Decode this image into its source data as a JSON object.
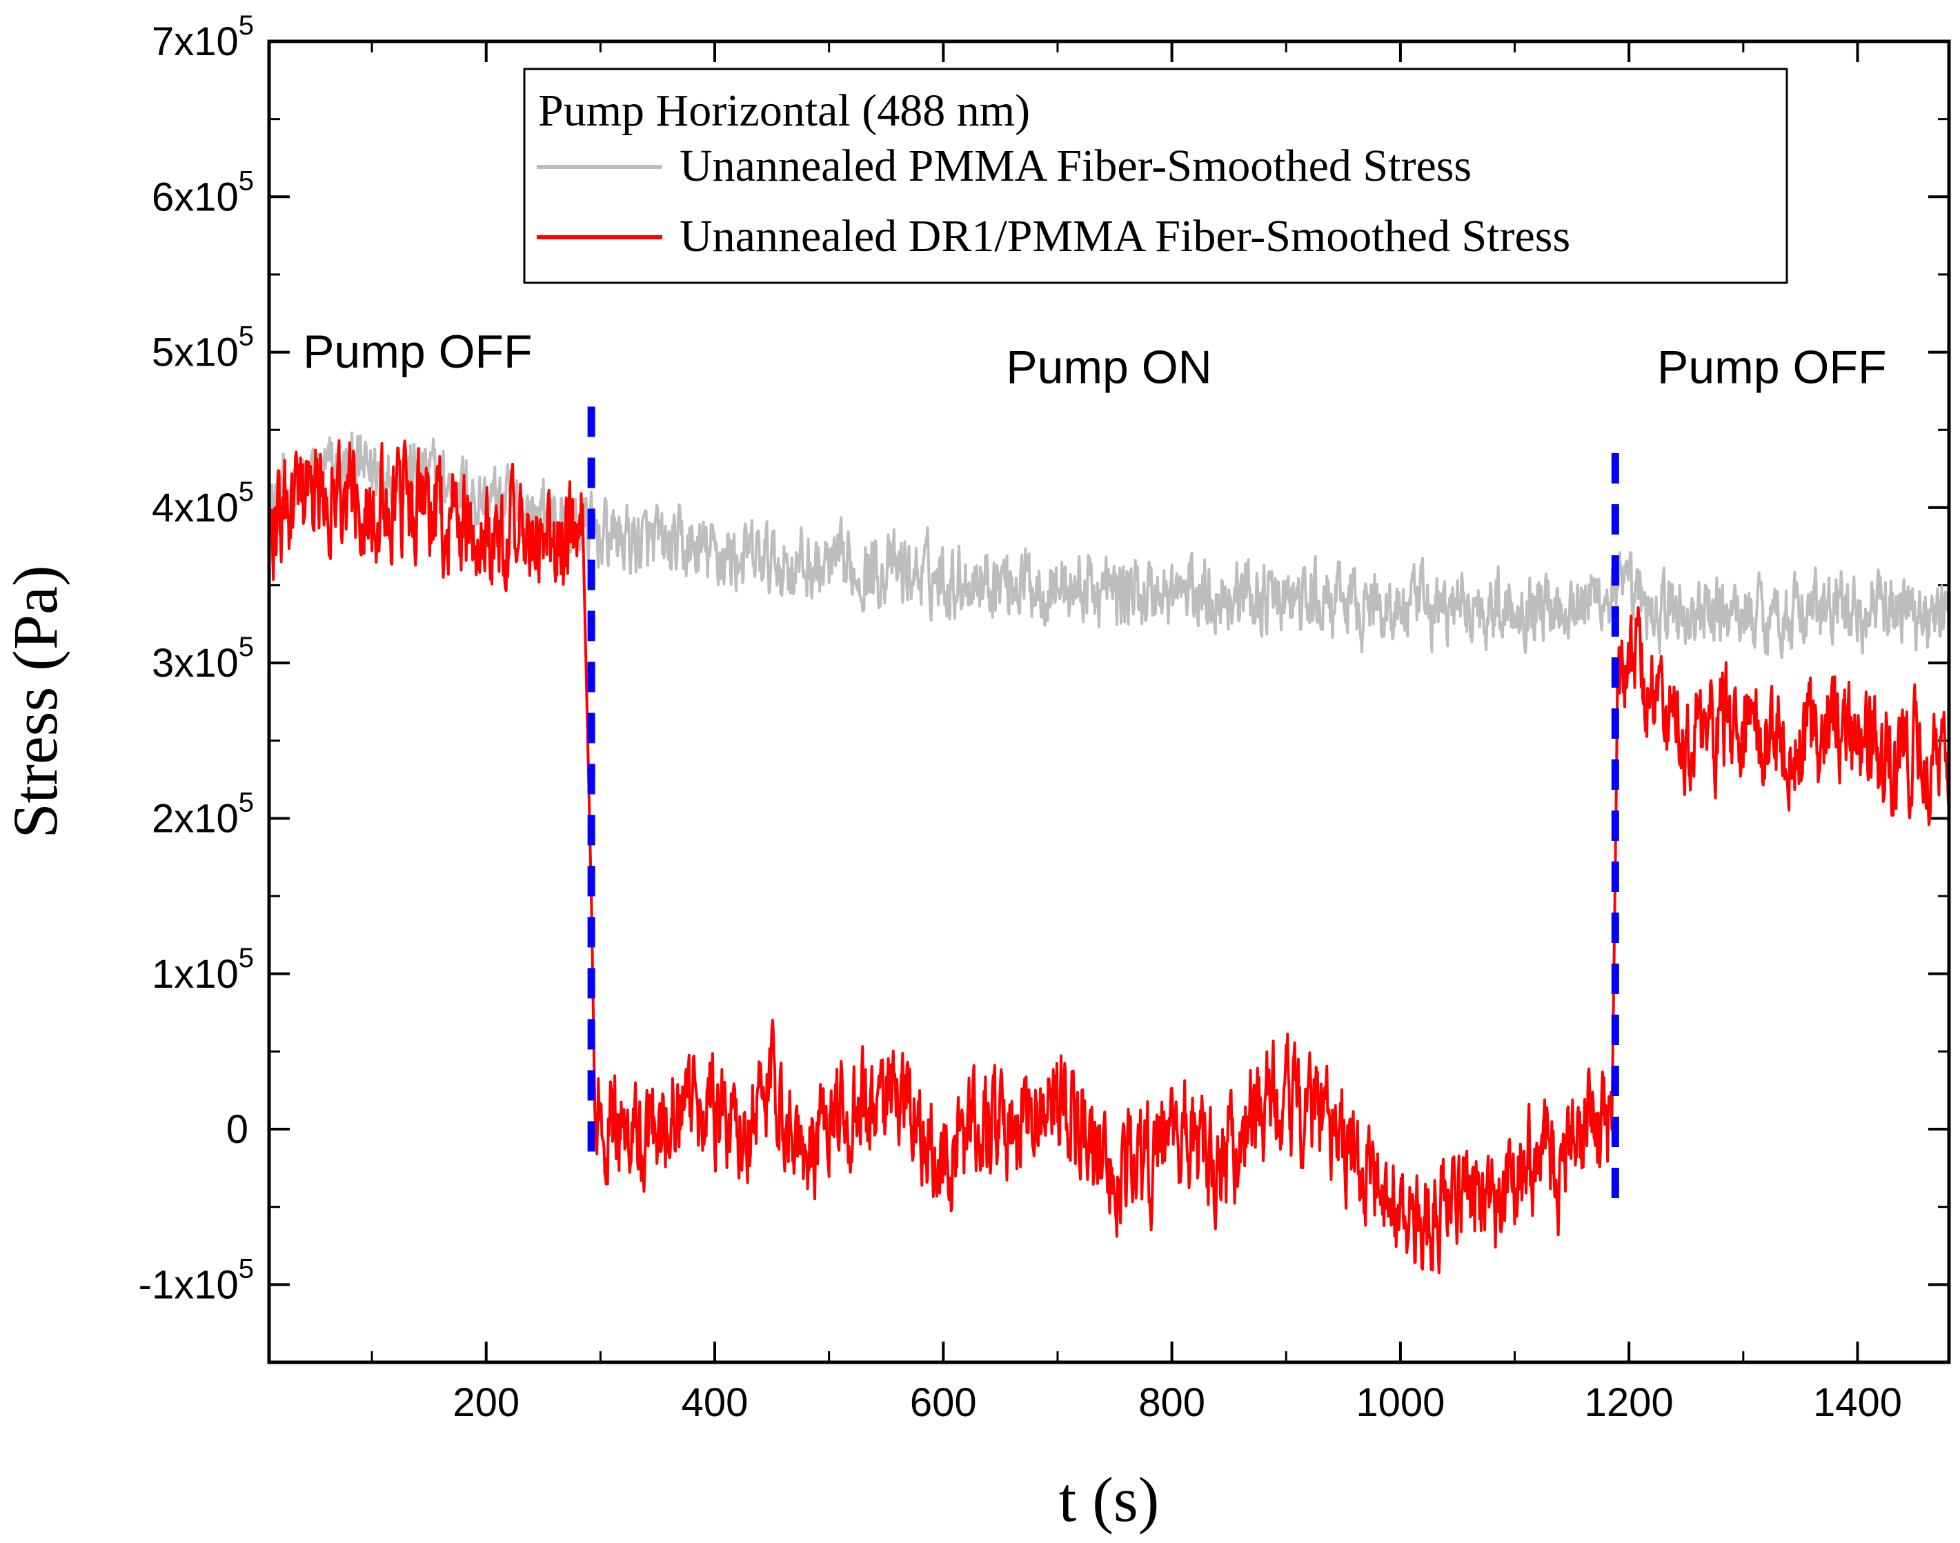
{
  "chart_data": {
    "type": "line",
    "title": "",
    "xlabel": "t (s)",
    "ylabel": "Stress (Pa)",
    "xlim": [
      10,
      1480
    ],
    "ylim": [
      -150000,
      700000
    ],
    "x_ticks": [
      200,
      400,
      600,
      800,
      1000,
      1200,
      1400
    ],
    "x_tick_labels": [
      "200",
      "400",
      "600",
      "800",
      "1000",
      "1200",
      "1400"
    ],
    "y_ticks": [
      {
        "value": -100000,
        "label": "-1x10",
        "exp": "5"
      },
      {
        "value": 0,
        "label": "0",
        "exp": ""
      },
      {
        "value": 100000,
        "label": "1x10",
        "exp": "5"
      },
      {
        "value": 200000,
        "label": "2x10",
        "exp": "5"
      },
      {
        "value": 300000,
        "label": "3x10",
        "exp": "5"
      },
      {
        "value": 400000,
        "label": "4x10",
        "exp": "5"
      },
      {
        "value": 500000,
        "label": "5x10",
        "exp": "5"
      },
      {
        "value": 600000,
        "label": "6x10",
        "exp": "5"
      },
      {
        "value": 700000,
        "label": "7x10",
        "exp": "5"
      }
    ],
    "legend": {
      "title": "Pump Horizontal (488 nm)",
      "placement": "top-center",
      "entries": [
        {
          "name": "Unannealed PMMA Fiber-Smoothed Stress",
          "color": "#bdbdbd"
        },
        {
          "name": "Unannealed DR1/PMMA Fiber-Smoothed Stress",
          "color": "#ff0000"
        }
      ]
    },
    "series": [
      {
        "name": "Unannealed PMMA Fiber-Smoothed Stress",
        "color": "#bdbdbd",
        "x": [
          10,
          50,
          100,
          150,
          200,
          250,
          290,
          350,
          400,
          450,
          500,
          550,
          600,
          650,
          700,
          750,
          800,
          850,
          900,
          950,
          1000,
          1050,
          1100,
          1150,
          1190,
          1220,
          1260,
          1300,
          1350,
          1400,
          1450,
          1480
        ],
        "y": [
          400000,
          420000,
          425000,
          420000,
          405000,
          395000,
          385000,
          375000,
          370000,
          365000,
          360000,
          360000,
          355000,
          355000,
          350000,
          345000,
          345000,
          345000,
          340000,
          338000,
          335000,
          335000,
          338000,
          340000,
          345000,
          335000,
          330000,
          332000,
          333000,
          334000,
          335000,
          330000
        ],
        "noise_amplitude": 20000
      },
      {
        "name": "Unannealed DR1/PMMA Fiber-Smoothed Stress",
        "color": "#ff0000",
        "x": [
          10,
          30,
          60,
          100,
          150,
          200,
          250,
          285,
          292,
          295,
          300,
          330,
          360,
          390,
          420,
          450,
          480,
          510,
          540,
          570,
          600,
          630,
          660,
          690,
          720,
          750,
          780,
          810,
          840,
          870,
          900,
          930,
          960,
          990,
          1020,
          1050,
          1080,
          1110,
          1140,
          1170,
          1185,
          1190,
          1200,
          1230,
          1260,
          1300,
          1350,
          1400,
          1450,
          1480
        ],
        "y": [
          380000,
          395000,
          410000,
          405000,
          395000,
          385000,
          380000,
          375000,
          150000,
          20000,
          5000,
          -5000,
          10000,
          20000,
          0,
          30000,
          -10000,
          5000,
          10000,
          15000,
          -20000,
          0,
          -10000,
          20000,
          10000,
          -30000,
          -20000,
          0,
          -30000,
          10000,
          20000,
          0,
          -20000,
          -50000,
          -60000,
          -40000,
          -50000,
          -20000,
          -30000,
          10000,
          0,
          280000,
          310000,
          270000,
          260000,
          255000,
          250000,
          248000,
          240000,
          235000
        ],
        "noise_amplitude": 30000
      }
    ],
    "vlines": [
      {
        "x": 292,
        "y_from": -15000,
        "y_to": 465000,
        "color": "#0000ff",
        "style": "dashed"
      },
      {
        "x": 1188,
        "y_from": -45000,
        "y_to": 435000,
        "color": "#0000ff",
        "style": "dashed"
      }
    ],
    "annotations": [
      {
        "text": "Pump OFF",
        "x": 140,
        "y": 490000
      },
      {
        "text": "Pump ON",
        "x": 745,
        "y": 480000
      },
      {
        "text": "Pump OFF",
        "x": 1325,
        "y": 480000
      }
    ]
  }
}
